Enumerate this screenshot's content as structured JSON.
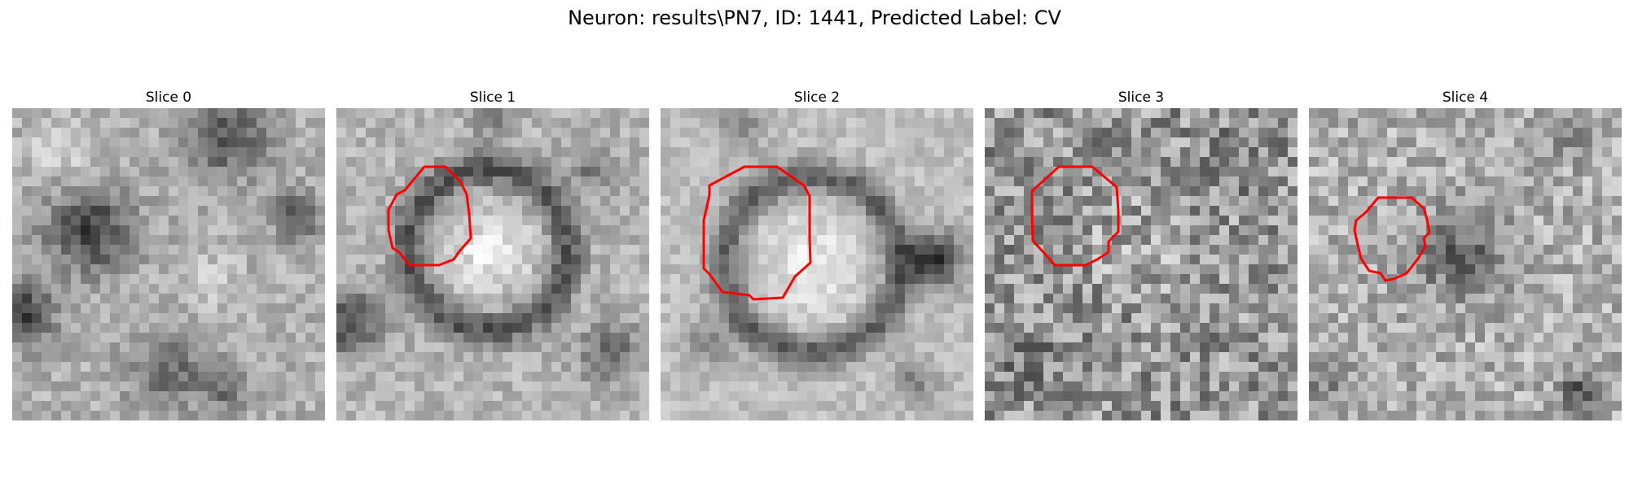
{
  "figure": {
    "title": "Neuron: results\\PN7, ID: 1441, Predicted Label: CV",
    "contour_color": "#ff0000"
  },
  "slices": [
    {
      "label": "Slice 0",
      "texture": "mottled bright field with dark patches; a dark roundish blob centered slightly left of middle, dark corner at lower-left and upper-right",
      "has_contour": false
    },
    {
      "label": "Slice 1",
      "texture": "bright vesicle-like disc surrounded by a dark ring, dark patch at left edge",
      "has_contour": true
    },
    {
      "label": "Slice 2",
      "texture": "large bright disc surrounded by a dark ring, dark patch on the right side",
      "has_contour": true
    },
    {
      "label": "Slice 3",
      "texture": "noisy speckled grey field with a faint round region in the center",
      "has_contour": true
    },
    {
      "label": "Slice 4",
      "texture": "noisy light grey field with a darker round blob in the center",
      "has_contour": true
    }
  ]
}
